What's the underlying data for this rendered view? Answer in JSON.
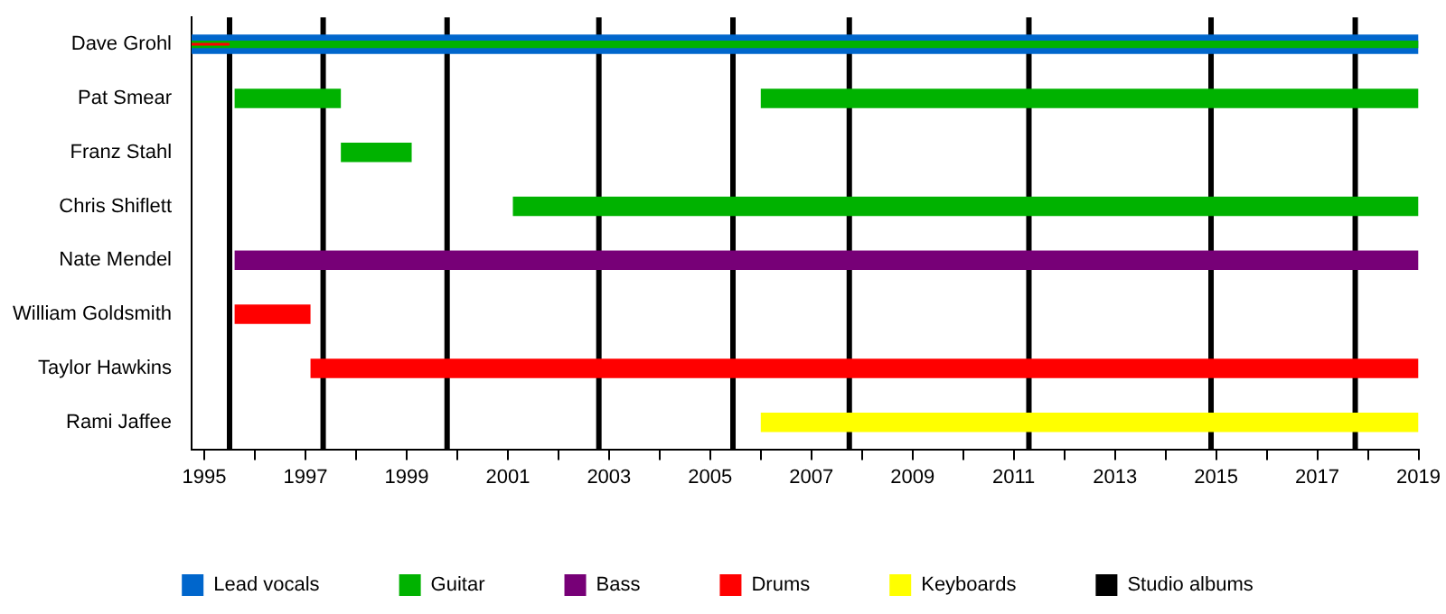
{
  "chart_data": {
    "type": "bar",
    "orientation": "horizontal",
    "categories": [
      "Dave Grohl",
      "Pat Smear",
      "Franz Stahl",
      "Chris Shiflett",
      "Nate Mendel",
      "William Goldsmith",
      "Taylor Hawkins",
      "Rami Jaffee"
    ],
    "series": [
      {
        "name": "Lead vocals",
        "color": "#0066cc",
        "base": [
          1994.75,
          null,
          null,
          null,
          null,
          null,
          null,
          null
        ],
        "values": [
          24.25,
          null,
          null,
          null,
          null,
          null,
          null,
          null
        ]
      },
      {
        "name": "Guitar",
        "color": "#00b200",
        "base": [
          1994.75,
          1995.6,
          1997.7,
          2001.1,
          null,
          null,
          null,
          null
        ],
        "values": [
          24.25,
          2.1,
          1.4,
          17.9,
          null,
          null,
          null,
          null
        ]
      },
      {
        "color": "#00b200",
        "base": [
          null,
          2006,
          null,
          null,
          null,
          null,
          null,
          null
        ],
        "values": [
          null,
          13,
          null,
          null,
          null,
          null,
          null,
          null
        ]
      },
      {
        "name": "Bass",
        "color": "#770077",
        "base": [
          null,
          null,
          null,
          null,
          1995.6,
          null,
          null,
          null
        ],
        "values": [
          null,
          null,
          null,
          null,
          23.4,
          null,
          null,
          null
        ]
      },
      {
        "name": "Drums",
        "color": "#ff0000",
        "base": [
          1994.75,
          null,
          null,
          null,
          null,
          1995.6,
          1997.1,
          null
        ],
        "values": [
          0.75,
          null,
          null,
          null,
          null,
          1.5,
          21.9,
          null
        ]
      },
      {
        "name": "Keyboards",
        "color": "#ffff00",
        "base": [
          null,
          null,
          null,
          null,
          null,
          null,
          null,
          2006
        ],
        "values": [
          null,
          null,
          null,
          null,
          null,
          null,
          null,
          13
        ]
      }
    ],
    "xlim": [
      1994.75,
      2019
    ],
    "xticks": [
      1995,
      {
        "value": 1996,
        "label": null
      },
      1997,
      {
        "value": 1998,
        "label": null
      },
      1999,
      {
        "value": 2000,
        "label": null
      },
      2001,
      {
        "value": 2002,
        "label": null
      },
      2003,
      {
        "value": 2004,
        "label": null
      },
      2005,
      {
        "value": 2006,
        "label": null
      },
      2007,
      {
        "value": 2008,
        "label": null
      },
      2009,
      {
        "value": 2010,
        "label": null
      },
      2011,
      {
        "value": 2012,
        "label": null
      },
      2013,
      {
        "value": 2014,
        "label": null
      },
      2015,
      {
        "value": 2016,
        "label": null
      },
      2017,
      {
        "value": 2018,
        "label": null
      },
      2019
    ],
    "ref_lines": [
      {
        "axis": "x",
        "value": 1995.5,
        "label": "Studio albums",
        "color": "#000000"
      },
      {
        "axis": "x",
        "value": 1997.35,
        "color": "#000000"
      },
      {
        "axis": "x",
        "value": 1999.8,
        "color": "#000000"
      },
      {
        "axis": "x",
        "value": 2002.8,
        "color": "#000000"
      },
      {
        "axis": "x",
        "value": 2005.45,
        "color": "#000000"
      },
      {
        "axis": "x",
        "value": 2007.75,
        "color": "#000000"
      },
      {
        "axis": "x",
        "value": 2011.3,
        "color": "#000000"
      },
      {
        "axis": "x",
        "value": 2014.9,
        "color": "#000000"
      },
      {
        "axis": "x",
        "value": 2017.75,
        "color": "#000000"
      }
    ],
    "grid": false,
    "legend": "bottom"
  }
}
